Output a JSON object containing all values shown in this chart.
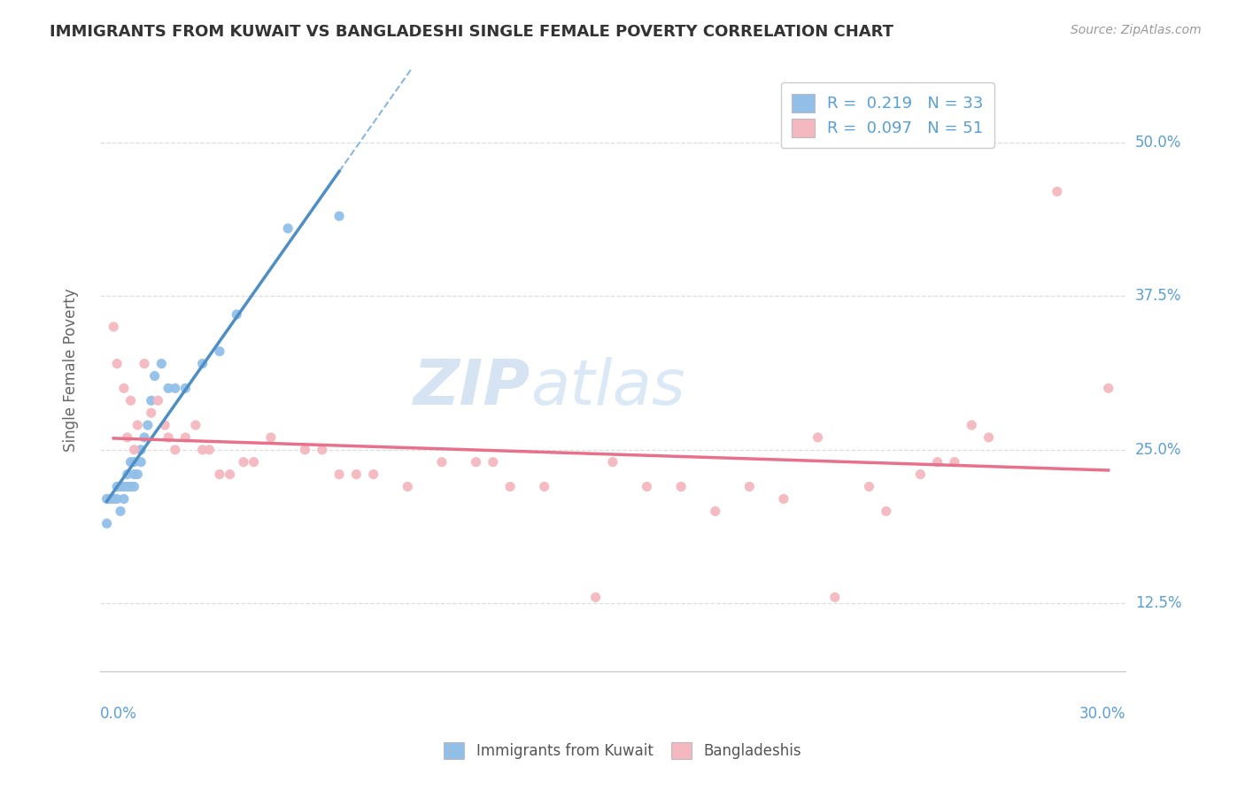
{
  "title": "IMMIGRANTS FROM KUWAIT VS BANGLADESHI SINGLE FEMALE POVERTY CORRELATION CHART",
  "source": "Source: ZipAtlas.com",
  "ylabel": "Single Female Poverty",
  "yticks": [
    0.125,
    0.25,
    0.375,
    0.5
  ],
  "ytick_labels": [
    "12.5%",
    "25.0%",
    "37.5%",
    "50.0%"
  ],
  "xmin": 0.0,
  "xmax": 0.3,
  "ymin": 0.07,
  "ymax": 0.56,
  "legend_label1": "Immigrants from Kuwait",
  "legend_label2": "Bangladeshis",
  "color_blue": "#92bfe8",
  "color_pink": "#f5b8c0",
  "trendline_blue": "#4d8ec4",
  "trendline_pink": "#e8708a",
  "watermark_zip": "ZIP",
  "watermark_atlas": "atlas",
  "blue_scatter_x": [
    0.002,
    0.002,
    0.003,
    0.004,
    0.005,
    0.005,
    0.006,
    0.006,
    0.007,
    0.007,
    0.008,
    0.008,
    0.009,
    0.009,
    0.01,
    0.01,
    0.01,
    0.011,
    0.012,
    0.012,
    0.013,
    0.014,
    0.015,
    0.016,
    0.018,
    0.02,
    0.022,
    0.025,
    0.03,
    0.035,
    0.04,
    0.055,
    0.07
  ],
  "blue_scatter_y": [
    0.19,
    0.21,
    0.21,
    0.21,
    0.21,
    0.22,
    0.2,
    0.22,
    0.21,
    0.22,
    0.22,
    0.23,
    0.22,
    0.24,
    0.22,
    0.23,
    0.24,
    0.23,
    0.24,
    0.25,
    0.26,
    0.27,
    0.29,
    0.31,
    0.32,
    0.3,
    0.3,
    0.3,
    0.32,
    0.33,
    0.36,
    0.43,
    0.44
  ],
  "pink_scatter_x": [
    0.004,
    0.005,
    0.007,
    0.008,
    0.009,
    0.01,
    0.011,
    0.013,
    0.015,
    0.017,
    0.019,
    0.02,
    0.022,
    0.025,
    0.028,
    0.03,
    0.032,
    0.035,
    0.038,
    0.042,
    0.045,
    0.05,
    0.06,
    0.065,
    0.07,
    0.075,
    0.08,
    0.09,
    0.1,
    0.11,
    0.115,
    0.12,
    0.13,
    0.145,
    0.15,
    0.16,
    0.17,
    0.18,
    0.19,
    0.2,
    0.21,
    0.215,
    0.225,
    0.23,
    0.24,
    0.245,
    0.25,
    0.255,
    0.26,
    0.28,
    0.295
  ],
  "pink_scatter_y": [
    0.35,
    0.32,
    0.3,
    0.26,
    0.29,
    0.25,
    0.27,
    0.32,
    0.28,
    0.29,
    0.27,
    0.26,
    0.25,
    0.26,
    0.27,
    0.25,
    0.25,
    0.23,
    0.23,
    0.24,
    0.24,
    0.26,
    0.25,
    0.25,
    0.23,
    0.23,
    0.23,
    0.22,
    0.24,
    0.24,
    0.24,
    0.22,
    0.22,
    0.13,
    0.24,
    0.22,
    0.22,
    0.2,
    0.22,
    0.21,
    0.26,
    0.13,
    0.22,
    0.2,
    0.23,
    0.24,
    0.24,
    0.27,
    0.26,
    0.46,
    0.3
  ]
}
